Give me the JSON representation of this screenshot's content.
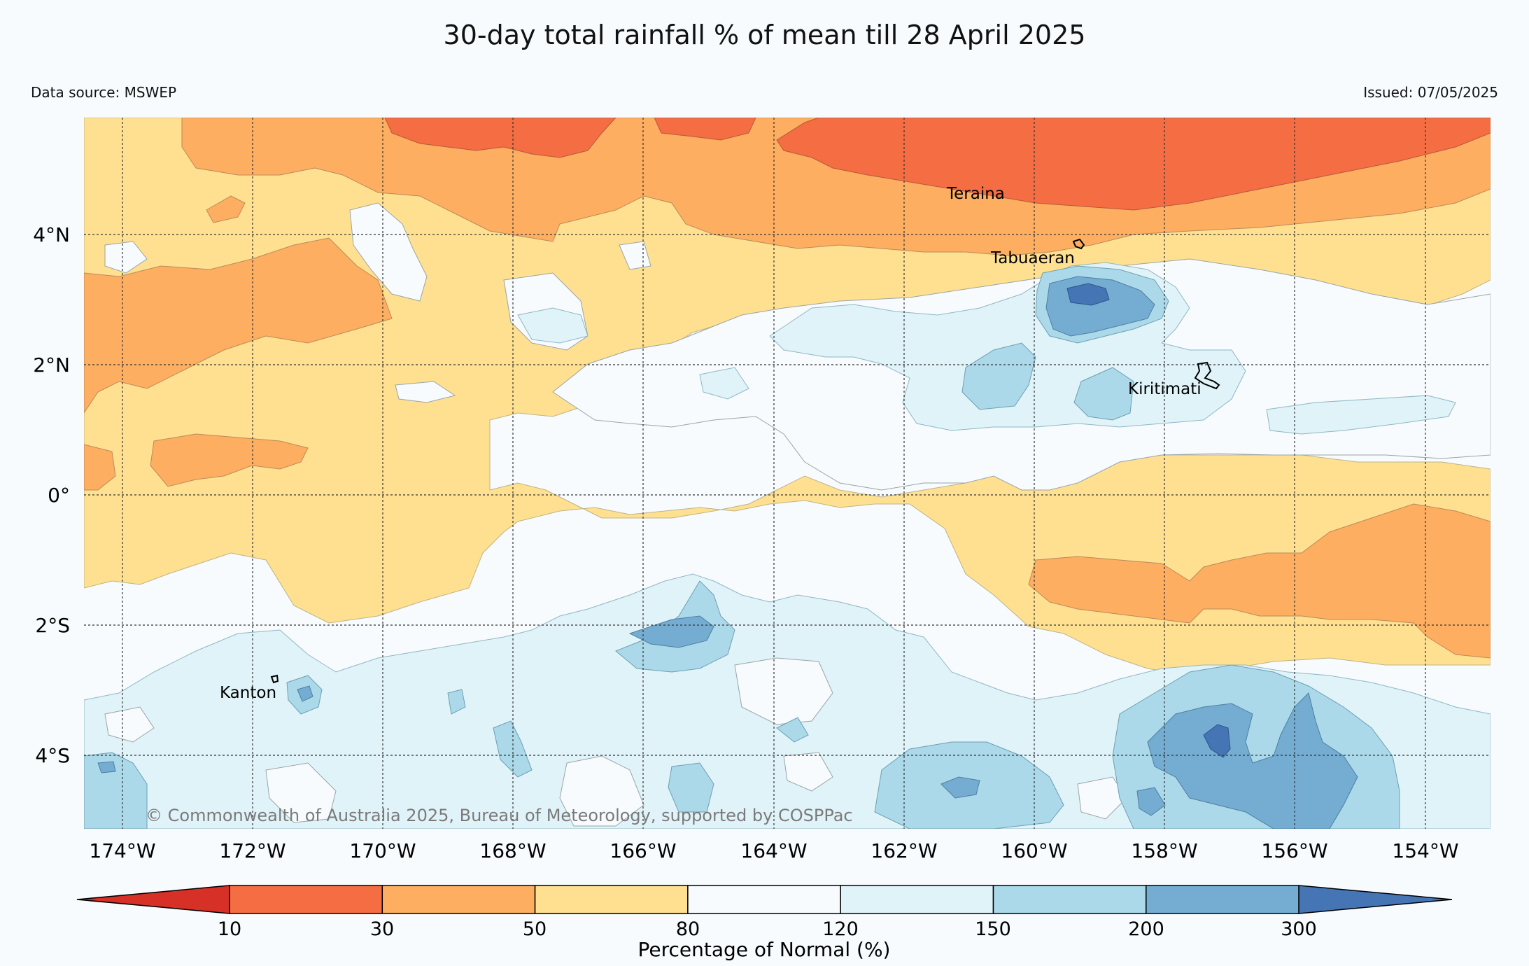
{
  "title": "30-day total rainfall % of mean till 28 April 2025",
  "data_source": "Data source: MSWEP",
  "issued": "Issued: 07/05/2025",
  "copyright": "© Commonwealth of Australia 2025, Bureau of Meteorology, supported by COSPPac",
  "longitude_labels": [
    "174°W",
    "172°W",
    "170°W",
    "168°W",
    "166°W",
    "164°W",
    "162°W",
    "160°W",
    "158°W",
    "156°W",
    "154°W"
  ],
  "latitude_labels": [
    "4°N",
    "2°N",
    "0°",
    "2°S",
    "4°S"
  ],
  "places": [
    {
      "name": "Teraina"
    },
    {
      "name": "Tabuaeran"
    },
    {
      "name": "Kiritimati"
    },
    {
      "name": "Kanton"
    }
  ],
  "colorbar": {
    "title": "Percentage of Normal (%)",
    "ticks": [
      "10",
      "30",
      "50",
      "80",
      "120",
      "150",
      "200",
      "300"
    ],
    "colors": [
      "#d73027",
      "#f46d43",
      "#fdae61",
      "#fee090",
      "#f7fbfd",
      "#e0f3f8",
      "#abd9e9",
      "#74add1",
      "#4575b4"
    ]
  }
}
